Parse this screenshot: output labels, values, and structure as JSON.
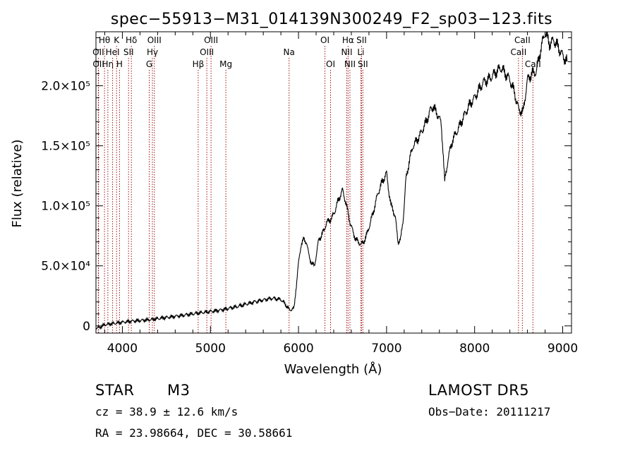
{
  "chart_data": {
    "type": "line",
    "title": "spec−55913−M31_014139N300249_F2_sp03−123.fits",
    "xlabel": "Wavelength (Å)",
    "ylabel": "Flux (relative)",
    "xlim": [
      3700,
      9100
    ],
    "ylim": [
      -6000,
      245000
    ],
    "x_ticks": [
      4000,
      5000,
      6000,
      7000,
      8000,
      9000
    ],
    "x_tick_labels": [
      "4000",
      "5000",
      "6000",
      "7000",
      "8000",
      "9000"
    ],
    "y_ticks": [
      0,
      50000,
      100000,
      150000,
      200000
    ],
    "y_tick_labels": [
      "0",
      "5.0×10⁴",
      "1.0×10⁵",
      "1.5×10⁵",
      "2.0×10⁵"
    ],
    "series": [
      {
        "x": [
          3700,
          3750,
          3800,
          3900,
          4000,
          4100,
          4200,
          4300,
          4400,
          4500,
          4600,
          4700,
          4800,
          4900,
          5000,
          5100,
          5200,
          5300,
          5400,
          5500,
          5600,
          5700,
          5800,
          5850,
          5900,
          5950,
          6000,
          6030,
          6060,
          6090,
          6120,
          6150,
          6180,
          6200,
          6230,
          6260,
          6290,
          6320,
          6350,
          6380,
          6410,
          6440,
          6470,
          6500,
          6530,
          6560,
          6590,
          6620,
          6650,
          6680,
          6710,
          6740,
          6770,
          6800,
          6850,
          6900,
          6950,
          7000,
          7030,
          7050,
          7070,
          7100,
          7130,
          7160,
          7190,
          7220,
          7260,
          7300,
          7350,
          7400,
          7450,
          7500,
          7530,
          7560,
          7590,
          7620,
          7640,
          7660,
          7680,
          7700,
          7750,
          7800,
          7850,
          7900,
          7950,
          8000,
          8050,
          8100,
          8150,
          8200,
          8250,
          8300,
          8350,
          8400,
          8450,
          8500,
          8550,
          8600,
          8650,
          8700,
          8750,
          8800,
          8850,
          8900,
          8950,
          9000,
          9050
        ],
        "y": [
          -2000,
          -1000,
          1000,
          2000,
          3000,
          4000,
          4500,
          5000,
          6000,
          7000,
          8000,
          9000,
          10000,
          11000,
          12000,
          13000,
          14500,
          16000,
          18000,
          20000,
          21500,
          23000,
          22000,
          18000,
          13000,
          15000,
          52000,
          68000,
          72000,
          70000,
          58000,
          52000,
          50000,
          58000,
          72000,
          75000,
          80000,
          86000,
          88000,
          90000,
          95000,
          102000,
          108000,
          113000,
          105000,
          95000,
          85000,
          78000,
          72000,
          70000,
          68000,
          70000,
          75000,
          82000,
          95000,
          110000,
          120000,
          127000,
          110000,
          100000,
          98000,
          90000,
          70000,
          72000,
          90000,
          122000,
          138000,
          150000,
          155000,
          162000,
          170000,
          180000,
          183000,
          178000,
          175000,
          168000,
          148000,
          120000,
          130000,
          140000,
          155000,
          162000,
          170000,
          178000,
          185000,
          190000,
          197000,
          203000,
          205000,
          208000,
          212000,
          215000,
          210000,
          205000,
          195000,
          180000,
          178000,
          205000,
          210000,
          212000,
          230000,
          245000,
          235000,
          238000,
          232000,
          225000,
          220000
        ]
      }
    ],
    "lines": [
      {
        "label": "Hθ",
        "x": 3797,
        "row": 1
      },
      {
        "label": "OII",
        "x": 3727,
        "row": 2
      },
      {
        "label": "OII",
        "x": 3729,
        "row": 3
      },
      {
        "label": "Hη",
        "x": 3835,
        "row": 3
      },
      {
        "label": "K",
        "x": 3934,
        "row": 1
      },
      {
        "label": "HeI",
        "x": 3889,
        "row": 2
      },
      {
        "label": "H",
        "x": 3968,
        "row": 3
      },
      {
        "label": "Hδ",
        "x": 4102,
        "row": 1
      },
      {
        "label": "SII",
        "x": 4070,
        "row": 2
      },
      {
        "label": "OIII",
        "x": 4363,
        "row": 1
      },
      {
        "label": "Hγ",
        "x": 4341,
        "row": 2
      },
      {
        "label": "G",
        "x": 4305,
        "row": 3
      },
      {
        "label": "OIII",
        "x": 5007,
        "row": 1
      },
      {
        "label": "OIII",
        "x": 4959,
        "row": 2
      },
      {
        "label": "Hβ",
        "x": 4861,
        "row": 3
      },
      {
        "label": "Mg",
        "x": 5175,
        "row": 3
      },
      {
        "label": "Na",
        "x": 5893,
        "row": 2
      },
      {
        "label": "OI",
        "x": 6300,
        "row": 1
      },
      {
        "label": "OI",
        "x": 6364,
        "row": 3
      },
      {
        "label": "Hα",
        "x": 6563,
        "row": 1
      },
      {
        "label": "SII",
        "x": 6716,
        "row": 1
      },
      {
        "label": "NII",
        "x": 6548,
        "row": 2
      },
      {
        "label": "Li",
        "x": 6708,
        "row": 2
      },
      {
        "label": "NII",
        "x": 6584,
        "row": 3
      },
      {
        "label": "SII",
        "x": 6731,
        "row": 3
      },
      {
        "label": "CaII",
        "x": 8542,
        "row": 1
      },
      {
        "label": "CaII",
        "x": 8498,
        "row": 2
      },
      {
        "label": "CaII",
        "x": 8662,
        "row": 3
      }
    ]
  },
  "info": {
    "class": "STAR",
    "subclass": "M3",
    "survey": "LAMOST  DR5",
    "cz": "cz = 38.9 ± 12.6 km/s",
    "obs_date": "Obs−Date: 20111217",
    "radec": "RA =  23.98664, DEC =  30.58661"
  }
}
